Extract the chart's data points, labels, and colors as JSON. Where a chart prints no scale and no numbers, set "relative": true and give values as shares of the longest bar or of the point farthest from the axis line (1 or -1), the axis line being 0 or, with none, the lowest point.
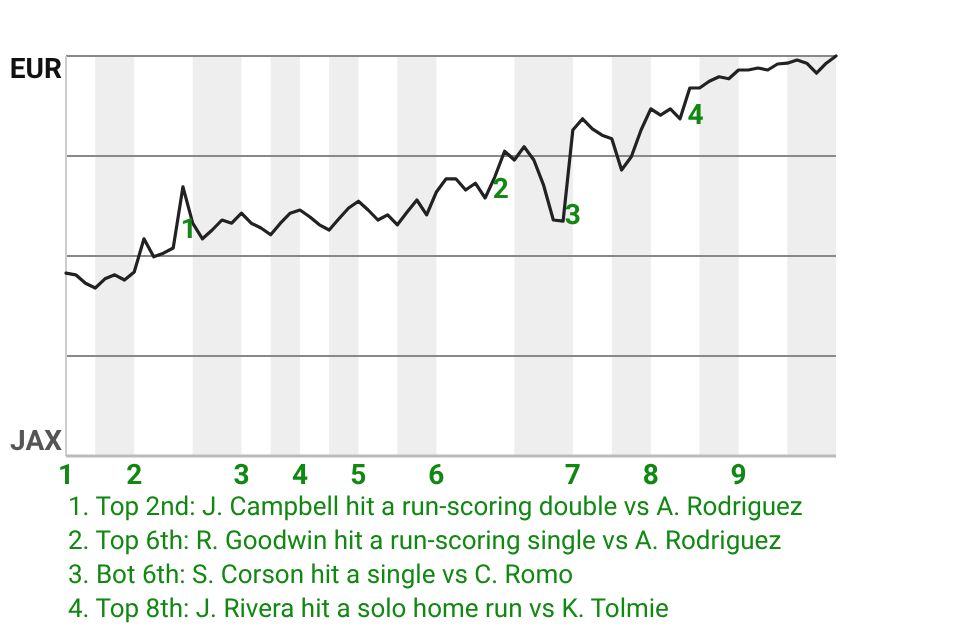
{
  "chart_data": {
    "type": "line",
    "relative": true,
    "categories": [
      "1",
      null,
      null,
      null,
      null,
      null,
      null,
      "2",
      null,
      null,
      null,
      null,
      null,
      null,
      null,
      null,
      null,
      null,
      "3",
      null,
      null,
      null,
      null,
      null,
      "4",
      null,
      null,
      null,
      null,
      null,
      "5",
      null,
      null,
      null,
      null,
      null,
      null,
      null,
      "6",
      null,
      null,
      null,
      null,
      null,
      null,
      null,
      null,
      null,
      null,
      null,
      null,
      null,
      "7",
      null,
      null,
      null,
      null,
      null,
      null,
      null,
      "8",
      null,
      null,
      null,
      null,
      null,
      null,
      null,
      null,
      "9",
      null,
      null,
      null,
      null,
      null,
      null,
      null,
      null,
      null,
      null
    ],
    "series": [
      {
        "color": "#222222",
        "values": [
          0.457,
          0.453,
          0.432,
          0.42,
          0.443,
          0.453,
          0.44,
          0.46,
          0.543,
          0.498,
          0.507,
          0.52,
          0.673,
          0.582,
          0.543,
          0.565,
          0.59,
          0.582,
          0.607,
          0.582,
          0.57,
          0.553,
          0.582,
          0.607,
          0.615,
          0.598,
          0.578,
          0.565,
          0.593,
          0.62,
          0.637,
          0.615,
          0.59,
          0.603,
          0.578,
          0.61,
          0.64,
          0.603,
          0.66,
          0.693,
          0.693,
          0.665,
          0.682,
          0.645,
          0.698,
          0.762,
          0.74,
          0.773,
          0.74,
          0.677,
          0.59,
          0.587,
          0.815,
          0.843,
          0.818,
          0.802,
          0.793,
          0.715,
          0.748,
          0.815,
          0.868,
          0.852,
          0.868,
          0.843,
          0.92,
          0.92,
          0.937,
          0.948,
          0.943,
          0.965,
          0.965,
          0.97,
          0.965,
          0.98,
          0.982,
          0.99,
          0.982,
          0.957,
          0.982,
          1
        ]
      }
    ],
    "ref_lines": [
      {
        "axis": "y",
        "value": 0.25,
        "color": "#888888"
      },
      {
        "axis": "y",
        "value": 0.5,
        "color": "#888888"
      },
      {
        "axis": "y",
        "value": 0.75,
        "color": "#888888"
      },
      {
        "axis": "y",
        "value": 1,
        "color": "#888888"
      }
    ],
    "marker": "none",
    "line_style": "solid",
    "annotations": [
      "EUR",
      "JAX",
      "1",
      "2",
      "3",
      "4",
      "1. Top 2nd: J. Campbell hit a run-scoring double vs A. Rodriguez",
      "2. Top 6th: R. Goodwin hit a run-scoring single vs A. Rodriguez",
      "3. Bot 6th: S. Corson hit a single vs C. Romo",
      "4. Top 8th: J. Rivera hit a solo home run vs K. Tolmie"
    ]
  }
}
